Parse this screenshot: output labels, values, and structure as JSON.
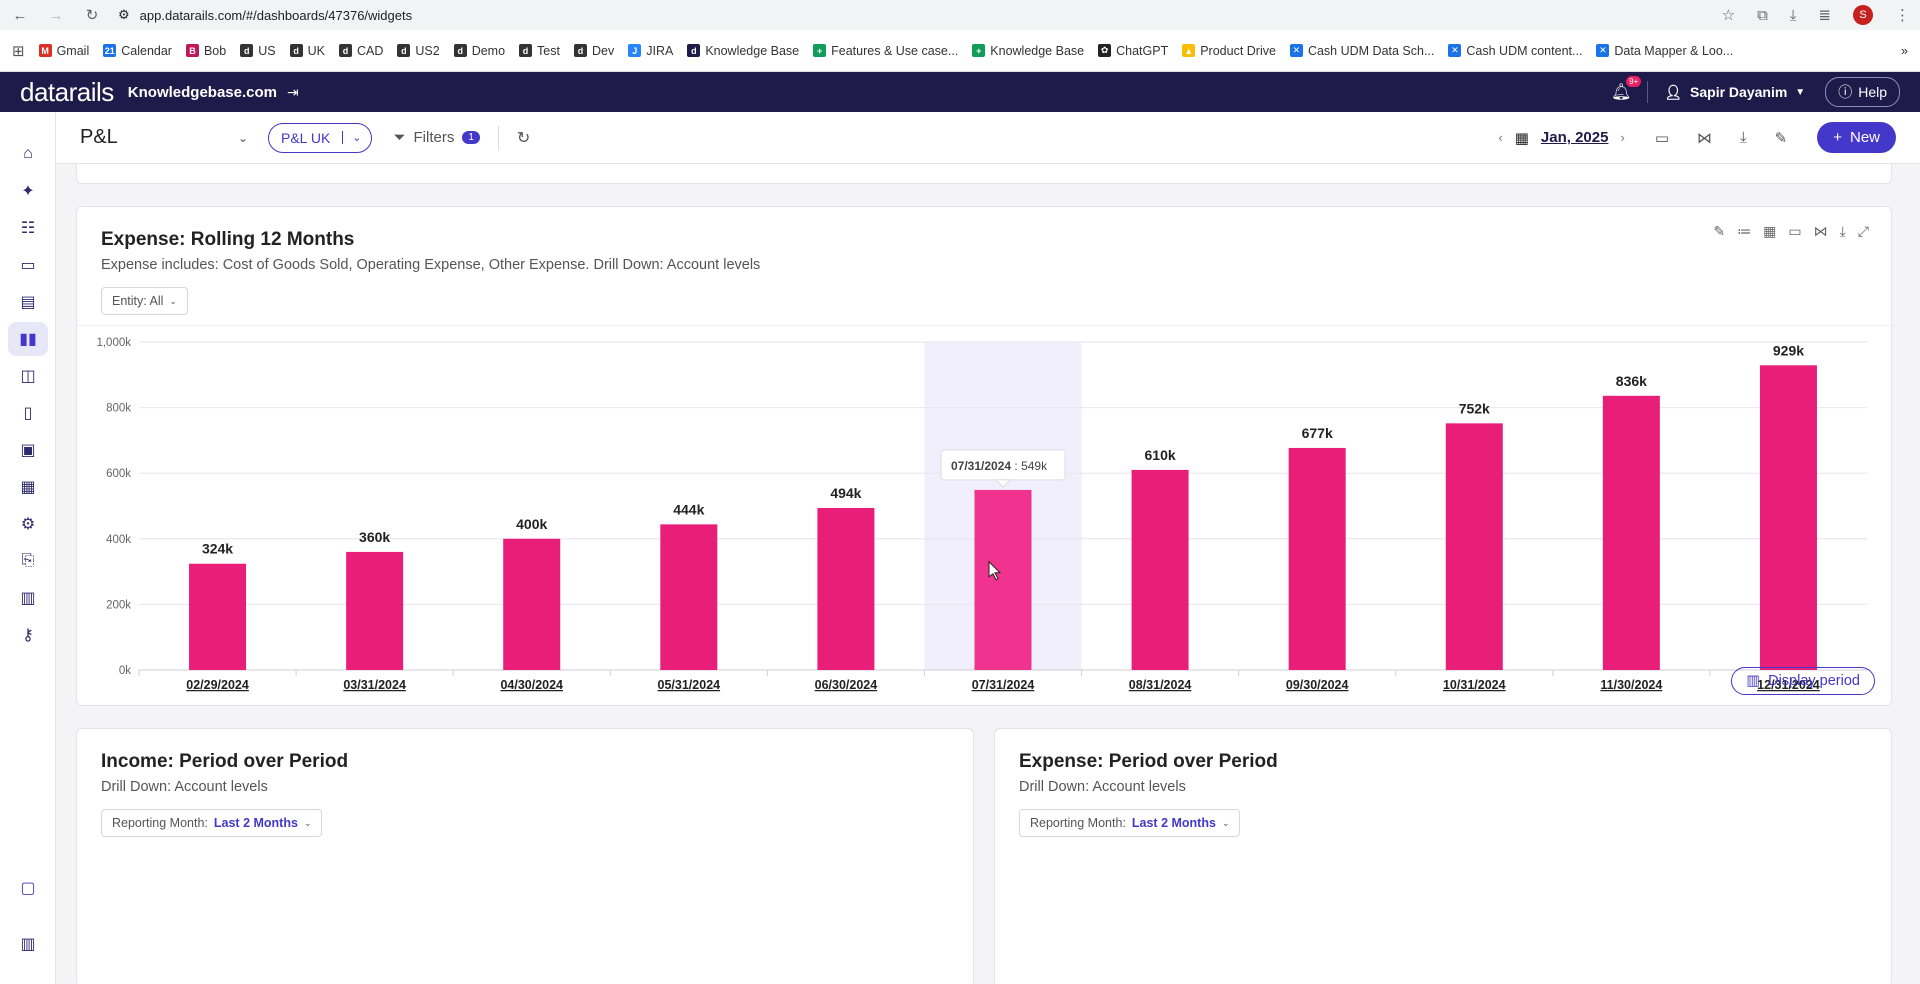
{
  "browser": {
    "url": "app.datarails.com/#/dashboards/47376/widgets",
    "avatar": "S",
    "bookmarks": [
      {
        "label": "Gmail",
        "color": "#d93025",
        "glyph": "M"
      },
      {
        "label": "Calendar",
        "color": "#1a73e8",
        "glyph": "21"
      },
      {
        "label": "Bob",
        "color": "#c2185b",
        "glyph": "B"
      },
      {
        "label": "US",
        "color": "#333333",
        "glyph": "d"
      },
      {
        "label": "UK",
        "color": "#333333",
        "glyph": "d"
      },
      {
        "label": "CAD",
        "color": "#333333",
        "glyph": "d"
      },
      {
        "label": "US2",
        "color": "#333333",
        "glyph": "d"
      },
      {
        "label": "Demo",
        "color": "#333333",
        "glyph": "d"
      },
      {
        "label": "Test",
        "color": "#333333",
        "glyph": "d"
      },
      {
        "label": "Dev",
        "color": "#333333",
        "glyph": "d"
      },
      {
        "label": "JIRA",
        "color": "#2684ff",
        "glyph": "J"
      },
      {
        "label": "Knowledge Base",
        "color": "#1e1b4b",
        "glyph": "d"
      },
      {
        "label": "Features & Use case...",
        "color": "#0f9d58",
        "glyph": "+"
      },
      {
        "label": "Knowledge Base",
        "color": "#0f9d58",
        "glyph": "+"
      },
      {
        "label": "ChatGPT",
        "color": "#222222",
        "glyph": "✿"
      },
      {
        "label": "Product Drive",
        "color": "#fbbc04",
        "glyph": "▲"
      },
      {
        "label": "Cash UDM Data Sch...",
        "color": "#1a73e8",
        "glyph": "✕"
      },
      {
        "label": "Cash UDM content...",
        "color": "#1a73e8",
        "glyph": "✕"
      },
      {
        "label": "Data Mapper & Loo...",
        "color": "#1a73e8",
        "glyph": "✕"
      }
    ]
  },
  "app": {
    "logo": "datarails",
    "domain": "Knowledgebase.com",
    "notif_badge": "9+",
    "user_name": "Sapir Dayanim",
    "help_label": "Help"
  },
  "toolbar": {
    "dashboard_title": "P&L",
    "scenario": "P&L UK",
    "filters_label": "Filters",
    "filters_count": "1",
    "period": "Jan, 2025",
    "new_label": "New"
  },
  "widget": {
    "title": "Expense: Rolling 12 Months",
    "subtitle": "Expense includes: Cost of Goods Sold, Operating Expense, Other Expense. Drill Down: Account levels",
    "entity_label": "Entity: All",
    "display_period_label": "Display period"
  },
  "chart_data": {
    "type": "bar",
    "categories": [
      "02/29/2024",
      "03/31/2024",
      "04/30/2024",
      "05/31/2024",
      "06/30/2024",
      "07/31/2024",
      "08/31/2024",
      "09/30/2024",
      "10/31/2024",
      "11/30/2024",
      "12/31/2024"
    ],
    "values": [
      324,
      360,
      400,
      444,
      494,
      549,
      610,
      677,
      752,
      836,
      929
    ],
    "data_labels": [
      "324k",
      "360k",
      "400k",
      "444k",
      "494k",
      "",
      "610k",
      "677k",
      "752k",
      "836k",
      "929k"
    ],
    "y_ticks": [
      0,
      200,
      400,
      600,
      800,
      1000
    ],
    "y_tick_labels": [
      "0k",
      "200k",
      "400k",
      "600k",
      "800k",
      "1,000k"
    ],
    "ylim": [
      0,
      1000
    ],
    "bar_color": "#e91e79",
    "highlight_color": "#f0338f",
    "highlight_index": 5,
    "tooltip": {
      "date": "07/31/2024",
      "value": "549k"
    },
    "grid": true
  },
  "income_card": {
    "title": "Income: Period over Period",
    "subtitle": "Drill Down: Account levels",
    "selector_label": "Reporting Month:",
    "selector_value": "Last 2 Months"
  },
  "expense_card": {
    "title": "Expense: Period over Period",
    "subtitle": "Drill Down: Account levels",
    "selector_label": "Reporting Month:",
    "selector_value": "Last 2 Months"
  }
}
